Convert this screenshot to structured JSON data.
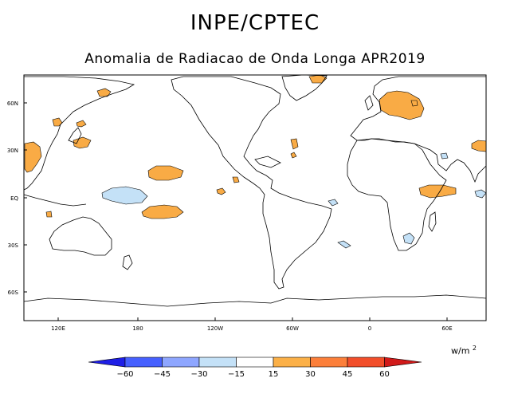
{
  "header": {
    "title": "INPE/CPTEC",
    "subtitle": "Anomalia de Radiacao de Onda Longa APR2019"
  },
  "axes": {
    "lat_labels": [
      "60N",
      "30N",
      "EQ",
      "30S",
      "60S"
    ],
    "lon_labels": [
      "120E",
      "180",
      "120W",
      "60W",
      "0",
      "60E"
    ]
  },
  "colorbar": {
    "units": "w/m",
    "units_exp": "2",
    "labels": [
      "−60",
      "−45",
      "−30",
      "−15",
      "15",
      "30",
      "45",
      "60"
    ],
    "colors": [
      "#1e1ee6",
      "#4660ff",
      "#8ea6ff",
      "#c4e1f7",
      "#ffffff",
      "#fbb047",
      "#fc7f3a",
      "#f24e2a",
      "#d11a1a"
    ]
  },
  "colors": {
    "positive_anomaly": "#f9ab45",
    "negative_anomaly": "#c4e1f7"
  }
}
